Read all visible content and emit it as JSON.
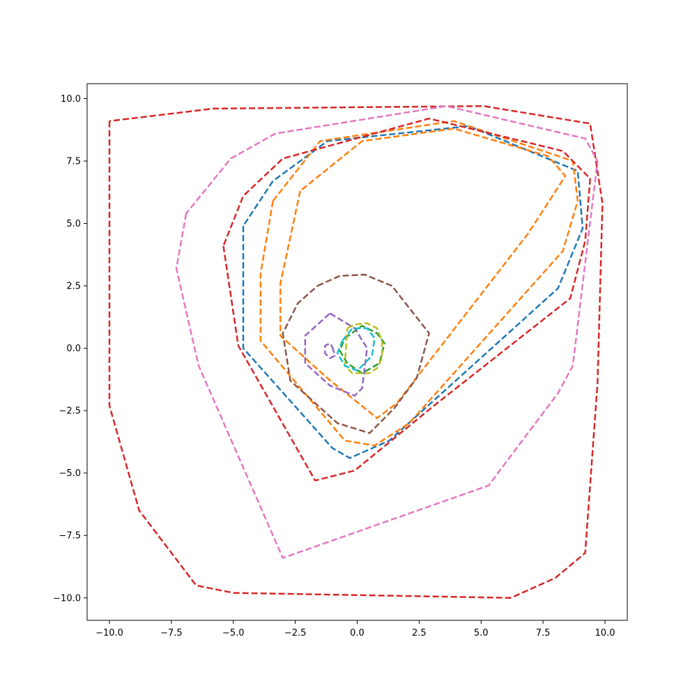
{
  "chart_data": {
    "type": "line",
    "title": "",
    "xlabel": "",
    "ylabel": "",
    "xlim": [
      -10.9,
      10.9
    ],
    "ylim": [
      -10.9,
      10.6
    ],
    "grid": false,
    "x_ticks": [
      -10.0,
      -7.5,
      -5.0,
      -2.5,
      0.0,
      2.5,
      5.0,
      7.5,
      10.0
    ],
    "y_ticks": [
      -10.0,
      -7.5,
      -5.0,
      -2.5,
      0.0,
      2.5,
      5.0,
      7.5,
      10.0
    ],
    "x_tick_labels": [
      "−10.0",
      "−7.5",
      "−5.0",
      "−2.5",
      "0.0",
      "2.5",
      "5.0",
      "7.5",
      "10.0"
    ],
    "y_tick_labels": [
      "−10.0",
      "−7.5",
      "−5.0",
      "−2.5",
      "0.0",
      "2.5",
      "5.0",
      "7.5",
      "10.0"
    ],
    "series": [
      {
        "color": "#1f77b4",
        "points": [
          [
            -4.6,
            4.9
          ],
          [
            -4.6,
            0.0
          ],
          [
            -1.0,
            -4.0
          ],
          [
            -0.3,
            -4.4
          ],
          [
            1.3,
            -3.7
          ],
          [
            8.1,
            2.4
          ],
          [
            9.1,
            4.8
          ],
          [
            8.9,
            7.1
          ],
          [
            4.5,
            8.9
          ],
          [
            -1.2,
            8.3
          ],
          [
            -3.4,
            6.7
          ],
          [
            -4.6,
            4.9
          ]
        ]
      },
      {
        "color": "#ff7f0e",
        "points": [
          [
            -3.4,
            5.9
          ],
          [
            -3.9,
            3.0
          ],
          [
            -3.9,
            0.3
          ],
          [
            -0.5,
            -3.7
          ],
          [
            0.7,
            -3.9
          ],
          [
            2.1,
            -3.0
          ],
          [
            8.3,
            3.9
          ],
          [
            8.9,
            5.9
          ],
          [
            8.7,
            7.5
          ],
          [
            3.9,
            9.1
          ],
          [
            -1.5,
            8.3
          ],
          [
            -3.4,
            5.9
          ]
        ]
      },
      {
        "color": "#ff7f0e",
        "points": [
          [
            -2.3,
            6.3
          ],
          [
            -3.1,
            2.6
          ],
          [
            -3.1,
            0.5
          ],
          [
            -1.2,
            -1.2
          ],
          [
            0.8,
            -2.8
          ],
          [
            1.6,
            -2.2
          ],
          [
            6.9,
            4.6
          ],
          [
            8.4,
            6.9
          ],
          [
            7.7,
            7.7
          ],
          [
            3.9,
            8.8
          ],
          [
            0.2,
            8.3
          ],
          [
            -2.3,
            6.3
          ]
        ]
      },
      {
        "color": "#2ca02c",
        "points": [
          [
            -0.5,
            0.4
          ],
          [
            0.2,
            0.9
          ],
          [
            0.8,
            0.6
          ],
          [
            1.1,
            0.2
          ],
          [
            0.9,
            -0.6
          ],
          [
            0.2,
            -1.0
          ],
          [
            -0.4,
            -0.6
          ],
          [
            -0.7,
            -0.1
          ],
          [
            -0.5,
            0.4
          ]
        ]
      },
      {
        "color": "#d62728",
        "points": [
          [
            -5.4,
            4.1
          ],
          [
            -4.8,
            0.1
          ],
          [
            -1.7,
            -5.3
          ],
          [
            -0.1,
            -4.9
          ],
          [
            3.1,
            -2.3
          ],
          [
            8.6,
            2.0
          ],
          [
            9.2,
            4.3
          ],
          [
            9.4,
            6.8
          ],
          [
            8.3,
            7.9
          ],
          [
            2.9,
            9.2
          ],
          [
            -3.0,
            7.6
          ],
          [
            -4.6,
            6.1
          ],
          [
            -5.4,
            4.1
          ]
        ]
      },
      {
        "color": "#d62728",
        "points": [
          [
            -10.0,
            9.1
          ],
          [
            -10.0,
            -2.3
          ],
          [
            -8.8,
            -6.5
          ],
          [
            -6.5,
            -9.5
          ],
          [
            -5.0,
            -9.8
          ],
          [
            6.2,
            -10.0
          ],
          [
            8.0,
            -9.2
          ],
          [
            9.2,
            -8.2
          ],
          [
            9.7,
            -1.4
          ],
          [
            9.9,
            5.8
          ],
          [
            9.4,
            9.0
          ],
          [
            5.1,
            9.7
          ],
          [
            -5.8,
            9.6
          ],
          [
            -10.0,
            9.1
          ]
        ]
      },
      {
        "color": "#9467bd",
        "points": [
          [
            -1.1,
            1.4
          ],
          [
            -0.1,
            0.8
          ],
          [
            0.4,
            0.0
          ],
          [
            0.2,
            -1.6
          ],
          [
            -0.1,
            -1.9
          ],
          [
            -1.1,
            -1.5
          ],
          [
            -2.1,
            -0.6
          ],
          [
            -2.1,
            0.5
          ],
          [
            -1.1,
            1.4
          ]
        ]
      },
      {
        "color": "#9467bd",
        "points": [
          [
            -1.0,
            0.05
          ],
          [
            -0.9,
            -0.3
          ],
          [
            -1.1,
            -0.4
          ],
          [
            -1.3,
            -0.2
          ],
          [
            -1.3,
            0.1
          ],
          [
            -1.1,
            0.2
          ],
          [
            -1.0,
            0.05
          ]
        ]
      },
      {
        "color": "#8c564b",
        "points": [
          [
            -1.6,
            2.5
          ],
          [
            -0.7,
            2.9
          ],
          [
            0.3,
            2.95
          ],
          [
            1.4,
            2.5
          ],
          [
            2.9,
            0.6
          ],
          [
            2.4,
            -1.2
          ],
          [
            1.5,
            -2.4
          ],
          [
            0.5,
            -3.4
          ],
          [
            -0.8,
            -3.0
          ],
          [
            -2.7,
            -1.3
          ],
          [
            -3.0,
            0.6
          ],
          [
            -2.4,
            1.8
          ],
          [
            -1.6,
            2.5
          ]
        ]
      },
      {
        "color": "#e377c2",
        "points": [
          [
            -6.9,
            5.4
          ],
          [
            -7.3,
            3.2
          ],
          [
            -6.4,
            -0.7
          ],
          [
            -3.0,
            -8.4
          ],
          [
            5.3,
            -5.5
          ],
          [
            8.1,
            -1.8
          ],
          [
            8.7,
            -0.7
          ],
          [
            9.7,
            7.5
          ],
          [
            9.2,
            8.4
          ],
          [
            3.6,
            9.7
          ],
          [
            -3.3,
            8.6
          ],
          [
            -5.1,
            7.6
          ],
          [
            -6.9,
            5.4
          ]
        ]
      },
      {
        "color": "#bcbd22",
        "points": [
          [
            -0.4,
            0.8
          ],
          [
            -0.1,
            0.95
          ],
          [
            0.4,
            1.0
          ],
          [
            0.8,
            0.8
          ],
          [
            1.0,
            0.3
          ],
          [
            1.0,
            -0.4
          ],
          [
            0.8,
            -0.8
          ],
          [
            0.5,
            -1.0
          ],
          [
            -0.2,
            -1.0
          ],
          [
            -0.5,
            -0.7
          ],
          [
            -0.4,
            0.8
          ]
        ]
      },
      {
        "color": "#17becf",
        "points": [
          [
            -0.6,
            0.3
          ],
          [
            -0.2,
            0.8
          ],
          [
            0.4,
            0.8
          ],
          [
            0.7,
            0.4
          ],
          [
            0.6,
            -0.3
          ],
          [
            0.0,
            -0.9
          ],
          [
            -0.5,
            -0.7
          ],
          [
            -0.8,
            -0.2
          ],
          [
            -0.6,
            0.3
          ]
        ]
      }
    ]
  }
}
